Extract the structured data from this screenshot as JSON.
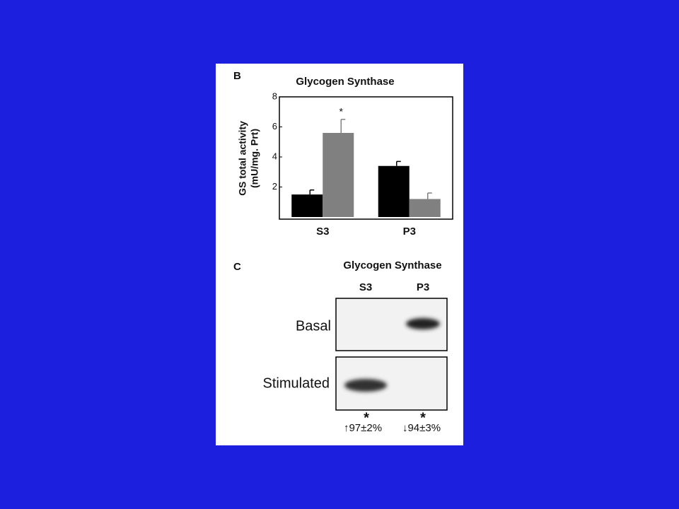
{
  "chart_data": {
    "type": "bar",
    "panel_label": "B",
    "title": "Glycogen Synthase",
    "ylabel": [
      "GS total activity",
      "(mU/mg. Prt)"
    ],
    "categories": [
      "S3",
      "P3"
    ],
    "series": [
      {
        "color": "#000000",
        "values": [
          1.5,
          3.4
        ],
        "errors": [
          0.3,
          0.3
        ]
      },
      {
        "color": "#808080",
        "values": [
          5.6,
          1.2
        ],
        "errors": [
          0.9,
          0.4
        ]
      }
    ],
    "annotation": "*",
    "ylim": [
      0,
      8
    ],
    "yticks": [
      2,
      4,
      6,
      8
    ]
  },
  "panel_c": {
    "panel_label": "C",
    "title": "Glycogen Synthase",
    "columns": [
      "S3",
      "P3"
    ],
    "rows": [
      "Basal",
      "Stimulated"
    ],
    "marks": [
      "*",
      "*"
    ],
    "changes": [
      "↑97±2%",
      "↓94±3%"
    ]
  }
}
